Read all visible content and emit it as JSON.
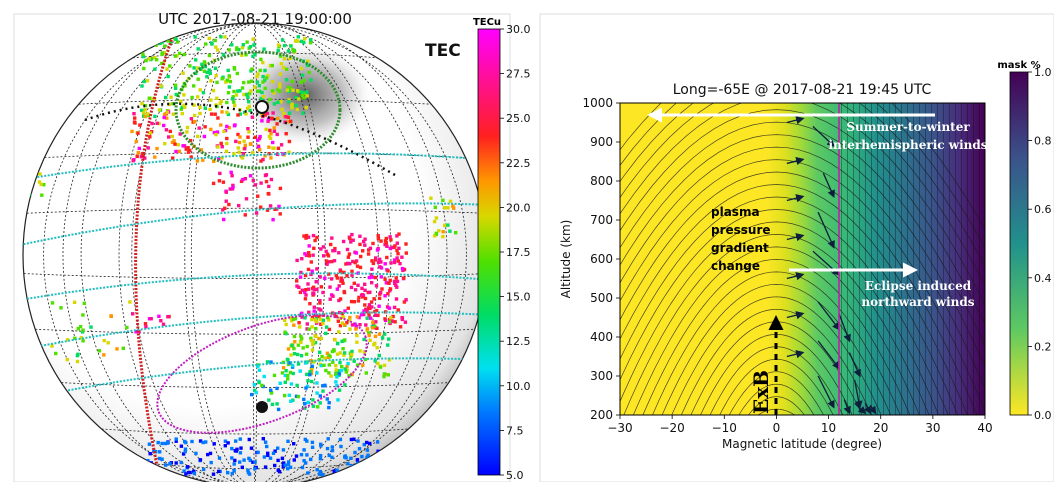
{
  "chart_data": [
    {
      "type": "heatmap",
      "title": "UTC 2017-08-21 19:00:00",
      "label": "TEC",
      "colorbar": {
        "label": "TECu",
        "range": [
          5.0,
          30.0
        ],
        "ticks": [
          "30.0",
          "27.5",
          "25.0",
          "22.5",
          "20.0",
          "17.5",
          "15.0",
          "12.5",
          "10.0",
          "7.5",
          "5.0"
        ]
      }
    },
    {
      "type": "heatmap",
      "title": "Long=-65E @ 2017-08-21 19:45 UTC",
      "xlabel": "Magnetic latitude (degree)",
      "ylabel": "Altitude (km)",
      "xlim": [
        -30,
        40
      ],
      "ylim": [
        200,
        1000
      ],
      "x_ticks": [
        "−30",
        "−20",
        "−10",
        "0",
        "10",
        "20",
        "30",
        "40"
      ],
      "y_ticks": [
        "1000",
        "900",
        "800",
        "700",
        "600",
        "500",
        "400",
        "300",
        "200"
      ],
      "mask_edge_latitude": 12,
      "colorbar": {
        "label": "mask %",
        "range": [
          0.0,
          1.0
        ],
        "ticks": [
          "1.0",
          "0.8",
          "0.6",
          "0.4",
          "0.2",
          "0.0"
        ]
      },
      "annotations": {
        "summer_winds": "Summer-to-winter interhemispheric winds",
        "plasma": "plasma pressure gradient change",
        "eclipse_winds": "Eclipse induced northward winds",
        "exb": "ExB"
      }
    }
  ]
}
